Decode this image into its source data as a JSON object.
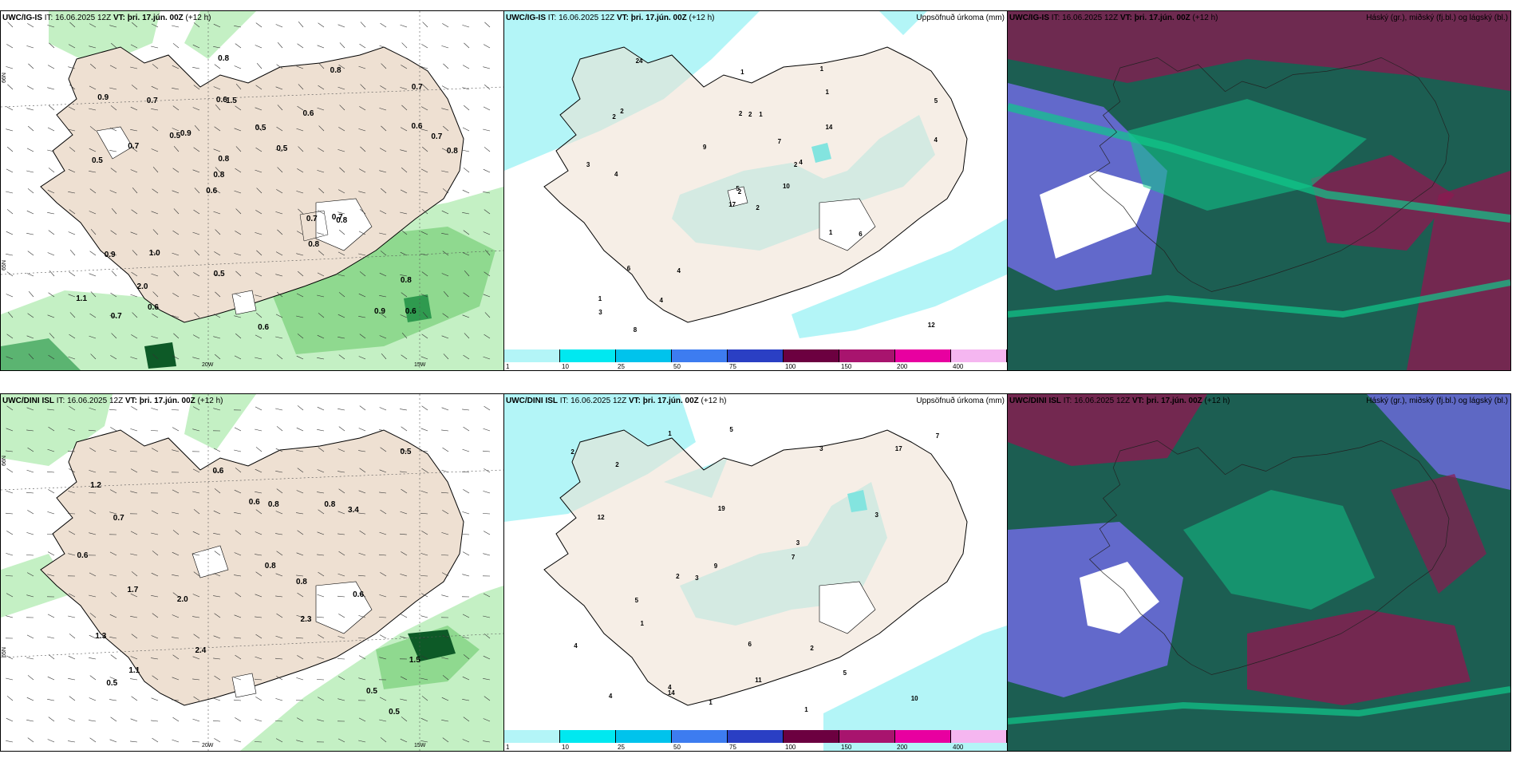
{
  "panels": {
    "p1": {
      "hdr_model": "UWC/IG-IS",
      "hdr_it": " IT: 16.06.2025 12Z",
      "hdr_vt_label": " VT:",
      "hdr_vt": " þri. 17.jún. 00Z",
      "hdr_lead": " (+12 h)"
    },
    "p2": {
      "hdr_model": "UWC/IG-IS",
      "hdr_it": " IT: 16.06.2025 12Z",
      "hdr_vt_label": " VT:",
      "hdr_vt": " þri. 17.jún. 00Z",
      "hdr_lead": " (+12 h)",
      "hdr_right": "Uppsöfnuð úrkoma (mm)"
    },
    "p3": {
      "hdr_model": "UWC/IG-IS",
      "hdr_it": " IT: 16.06.2025 12Z",
      "hdr_vt_label": " VT:",
      "hdr_vt": " þri. 17.jún. 00Z",
      "hdr_lead": " (+12 h)",
      "hdr_right": "Háský (gr.), miðský (fj.bl.) og lágský (bl.)"
    },
    "p4": {
      "hdr_model": "UWC/DINI ISL",
      "hdr_it": " IT: 16.06.2025 12Z",
      "hdr_vt_label": " VT:",
      "hdr_vt": " þri. 17.jún. 00Z",
      "hdr_lead": " (+12 h)"
    },
    "p5": {
      "hdr_model": "UWC/DINI ISL",
      "hdr_it": " IT: 16.06.2025 12Z",
      "hdr_vt_label": " VT:",
      "hdr_vt": " þri. 17.jún. 00Z",
      "hdr_lead": " (+12 h)",
      "hdr_right": "Uppsöfnuð úrkoma (mm)"
    },
    "p6": {
      "hdr_model": "UWC/DINI ISL",
      "hdr_it": " IT: 16.06.2025 12Z",
      "hdr_vt_label": " VT:",
      "hdr_vt": " þri. 17.jún. 00Z",
      "hdr_lead": " (+12 h)",
      "hdr_right": "Háský (gr.), miðský (fj.bl.) og lágský (bl.)"
    }
  },
  "axis": {
    "lon_20": "20W",
    "lon_15": "15W",
    "lat_65": "65N",
    "lat_66": "66N"
  },
  "colorbar": {
    "labels": [
      "1",
      "10",
      "25",
      "50",
      "75",
      "100",
      "150",
      "200",
      "400"
    ],
    "colors": [
      "#b3f5f7",
      "#00e8f0",
      "#00c3ec",
      "#3d7cf0",
      "#2a3fc4",
      "#6c0040",
      "#a8146e",
      "#e800a0",
      "#f5b6f0"
    ]
  },
  "p1_values": [
    "0.6",
    "0.5",
    "0.7",
    "0.6",
    "0.6",
    "0.7",
    "0.6",
    "0.5",
    "0.9",
    "0.9",
    "1.1",
    "2.0",
    "1.5",
    "0.5",
    "0.8",
    "0.9",
    "0.8",
    "0.8",
    "0.7",
    "0.6",
    "0.8",
    "0.5",
    "0.8",
    "0.7",
    "0.8",
    "1.0",
    "0.9",
    "0.8",
    "0.7",
    "0.6",
    "0.5",
    "0.7",
    "0.8",
    "0.6",
    "0.7"
  ],
  "p4_values": [
    "0.5",
    "1.7",
    "2.3",
    "1.2",
    "1.5",
    "0.7",
    "1.1",
    "2.0",
    "3.4",
    "0.6",
    "0.8",
    "0.5",
    "2.4",
    "0.6",
    "0.8",
    "1.3",
    "0.6",
    "0.8",
    "0.6",
    "0.5",
    "0.5",
    "0.8"
  ],
  "p2_values": [
    "2",
    "2",
    "2",
    "1",
    "2",
    "4",
    "1",
    "1",
    "1",
    "10",
    "24",
    "12",
    "4",
    "5",
    "17",
    "14",
    "8",
    "2",
    "7",
    "6",
    "9",
    "3",
    "4",
    "2",
    "4",
    "6",
    "2",
    "1",
    "3",
    "1",
    "4",
    "5"
  ],
  "p5_values": [
    "1",
    "1",
    "4",
    "5",
    "1",
    "2",
    "2",
    "10",
    "5",
    "19",
    "17",
    "11",
    "9",
    "6",
    "3",
    "7",
    "12",
    "14",
    "3",
    "2",
    "2",
    "7",
    "3",
    "4",
    "3",
    "5",
    "4",
    "1"
  ],
  "colors": {
    "land": "#eee0d2",
    "green1": "#c4f0c4",
    "green2": "#8fd98f",
    "green3": "#2f9a4f",
    "green4": "#0d5a27",
    "cyan1": "#b3f5f7",
    "sea_dark": "#1c5e52",
    "cloud_teal": "#10c88a",
    "cloud_blue": "#6a6ad8",
    "cloud_red": "#8a1a50"
  }
}
